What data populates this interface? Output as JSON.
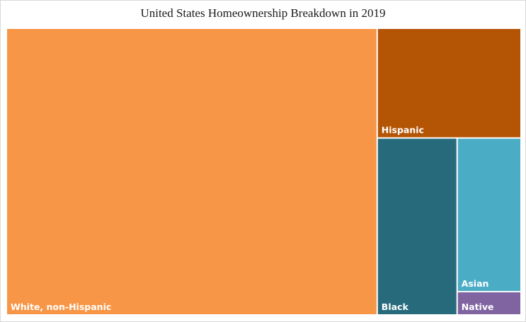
{
  "chart_data": {
    "type": "treemap",
    "title": "United States Homeownership Breakdown in 2019",
    "tiles": [
      {
        "label": "White, non-Hispanic",
        "value": 71.4,
        "color": "#f79646"
      },
      {
        "label": "Hispanic",
        "value": 10.6,
        "color": "#b45506"
      },
      {
        "label": "Black",
        "value": 9.5,
        "color": "#276a7c"
      },
      {
        "label": "Asian",
        "value": 6.6,
        "color": "#4bacc6"
      },
      {
        "label": "Native",
        "value": 1.0,
        "color": "#8064a2"
      }
    ]
  }
}
